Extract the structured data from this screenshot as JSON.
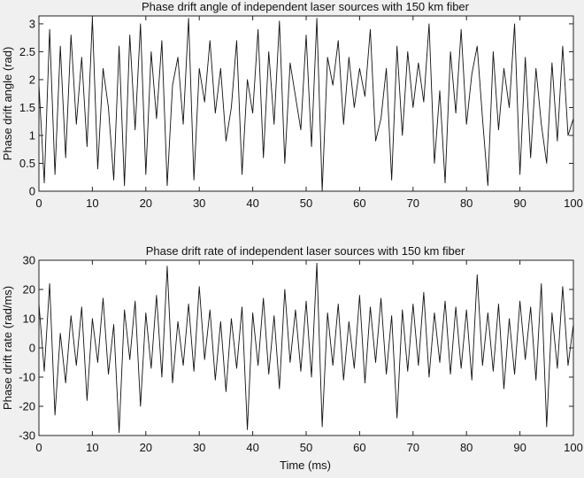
{
  "chart_data": [
    {
      "type": "line",
      "title": "Phase drift angle of independent laser sources with 150 km fiber",
      "xlabel": "",
      "ylabel": "Phase drift angle (rad)",
      "xlim": [
        0,
        100
      ],
      "ylim": [
        0,
        3.14159
      ],
      "xticks": [
        "0",
        "10",
        "20",
        "30",
        "40",
        "50",
        "60",
        "70",
        "80",
        "90",
        "100"
      ],
      "yticks": [
        "0",
        "0.5",
        "1",
        "1.5",
        "2",
        "2.5",
        "3"
      ],
      "grid": false,
      "series": [
        {
          "x": [
            0,
            1,
            2,
            3,
            4,
            5,
            6,
            7,
            8,
            9,
            10,
            11,
            12,
            13,
            14,
            15,
            16,
            17,
            18,
            19,
            20,
            21,
            22,
            23,
            24,
            25,
            26,
            27,
            28,
            29,
            30,
            31,
            32,
            33,
            34,
            35,
            36,
            37,
            38,
            39,
            40,
            41,
            42,
            43,
            44,
            45,
            46,
            47,
            48,
            49,
            50,
            51,
            52,
            53,
            54,
            55,
            56,
            57,
            58,
            59,
            60,
            61,
            62,
            63,
            64,
            65,
            66,
            67,
            68,
            69,
            70,
            71,
            72,
            73,
            74,
            75,
            76,
            77,
            78,
            79,
            80,
            81,
            82,
            83,
            84,
            85,
            86,
            87,
            88,
            89,
            90,
            91,
            92,
            93,
            94,
            95,
            96,
            97,
            98,
            99,
            100
          ],
          "y": [
            1.9,
            0.15,
            2.9,
            0.3,
            2.6,
            0.6,
            2.8,
            1.2,
            2.4,
            0.8,
            3.1,
            0.4,
            2.2,
            1.5,
            0.2,
            2.6,
            0.1,
            2.8,
            1.1,
            3.0,
            0.3,
            2.5,
            1.3,
            2.7,
            0.1,
            1.9,
            2.4,
            1.2,
            3.1,
            0.2,
            2.2,
            1.6,
            2.7,
            1.4,
            2.2,
            0.9,
            1.5,
            2.7,
            0.3,
            2.0,
            1.4,
            2.9,
            0.6,
            2.5,
            1.2,
            3.05,
            0.5,
            2.3,
            1.7,
            1.1,
            2.8,
            0.8,
            3.1,
            0.0,
            2.4,
            1.9,
            2.7,
            1.2,
            2.4,
            1.5,
            2.2,
            1.7,
            2.9,
            0.9,
            1.3,
            2.2,
            0.2,
            2.6,
            1.0,
            2.5,
            1.5,
            2.3,
            1.6,
            3.0,
            0.5,
            1.8,
            0.15,
            2.5,
            1.4,
            2.9,
            1.2,
            2.1,
            2.6,
            1.3,
            0.1,
            2.5,
            1.1,
            2.2,
            1.5,
            3.0,
            0.3,
            2.4,
            0.6,
            2.2,
            1.2,
            0.5,
            2.3,
            0.9,
            2.6,
            1.0,
            1.3
          ]
        }
      ]
    },
    {
      "type": "line",
      "title": "Phase drift rate of independent laser sources with 150 km fiber",
      "xlabel": "Time (ms)",
      "ylabel": "Phase drift rate (rad/ms)",
      "xlim": [
        0,
        100
      ],
      "ylim": [
        -30,
        30
      ],
      "xticks": [
        "0",
        "10",
        "20",
        "30",
        "40",
        "50",
        "60",
        "70",
        "80",
        "90",
        "100"
      ],
      "yticks": [
        "-30",
        "-20",
        "-10",
        "0",
        "10",
        "20",
        "30"
      ],
      "grid": false,
      "series": [
        {
          "x": [
            0,
            1,
            2,
            3,
            4,
            5,
            6,
            7,
            8,
            9,
            10,
            11,
            12,
            13,
            14,
            15,
            16,
            17,
            18,
            19,
            20,
            21,
            22,
            23,
            24,
            25,
            26,
            27,
            28,
            29,
            30,
            31,
            32,
            33,
            34,
            35,
            36,
            37,
            38,
            39,
            40,
            41,
            42,
            43,
            44,
            45,
            46,
            47,
            48,
            49,
            50,
            51,
            52,
            53,
            54,
            55,
            56,
            57,
            58,
            59,
            60,
            61,
            62,
            63,
            64,
            65,
            66,
            67,
            68,
            69,
            70,
            71,
            72,
            73,
            74,
            75,
            76,
            77,
            78,
            79,
            80,
            81,
            82,
            83,
            84,
            85,
            86,
            87,
            88,
            89,
            90,
            91,
            92,
            93,
            94,
            95,
            96,
            97,
            98,
            99,
            100
          ],
          "y": [
            15,
            -8,
            22,
            -23,
            5,
            -12,
            11,
            -6,
            14,
            -18,
            10,
            -5,
            17,
            -9,
            8,
            -29,
            13,
            -4,
            16,
            -20,
            12,
            -7,
            18,
            -10,
            28,
            -12,
            9,
            -6,
            15,
            -8,
            21,
            -4,
            13,
            -11,
            9,
            -15,
            10,
            -7,
            14,
            -28,
            12,
            -6,
            17,
            -9,
            11,
            -14,
            20,
            -5,
            13,
            -8,
            16,
            -10,
            29,
            -27,
            12,
            -6,
            15,
            -11,
            9,
            -7,
            18,
            -12,
            14,
            -5,
            17,
            -9,
            11,
            -24,
            13,
            -8,
            15,
            -6,
            19,
            -10,
            12,
            -5,
            16,
            -9,
            14,
            -7,
            13,
            -11,
            25,
            -6,
            12,
            -8,
            15,
            -14,
            10,
            -9,
            16,
            -4,
            14,
            -11,
            22,
            -27,
            12,
            -7,
            21,
            -6,
            8
          ]
        }
      ]
    }
  ]
}
